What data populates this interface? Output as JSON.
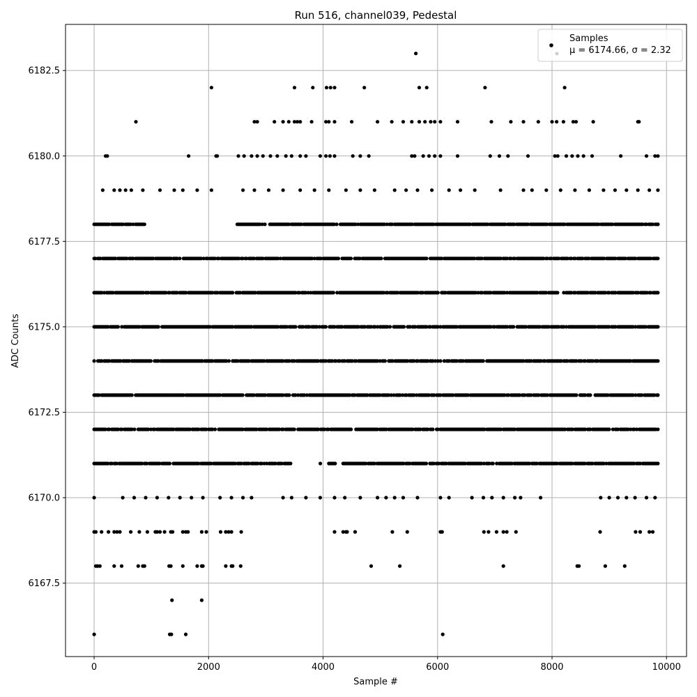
{
  "chart_data": {
    "type": "scatter",
    "title": "Run 516, channel039, Pedestal",
    "xlabel": "Sample #",
    "ylabel": "ADC Counts",
    "xlim": [
      -500,
      10350
    ],
    "ylim": [
      6165.35,
      6183.85
    ],
    "xticks": [
      0,
      2000,
      4000,
      6000,
      8000,
      10000
    ],
    "xtick_labels": [
      "0",
      "2000",
      "4000",
      "6000",
      "8000",
      "10000"
    ],
    "yticks": [
      6167.5,
      6170.0,
      6172.5,
      6175.0,
      6177.5,
      6180.0,
      6182.5
    ],
    "ytick_labels": [
      "6167.5",
      "6170.0",
      "6172.5",
      "6175.0",
      "6177.5",
      "6180.0",
      "6182.5"
    ],
    "grid": true,
    "legend_position": "top-right",
    "legend": {
      "series_label": "Samples",
      "stats_label": "μ = 6174.66, σ = 2.32"
    },
    "series": [
      {
        "name": "Samples",
        "color": "#000000",
        "x_max": 9850
      }
    ],
    "levels": [
      {
        "y": 6166,
        "x": [
          0,
          1320,
          1350,
          1600,
          6090
        ]
      },
      {
        "y": 6167,
        "x": [
          1360,
          1880
        ]
      },
      {
        "y": 6168,
        "x": [
          30,
          60,
          100,
          350,
          480,
          770,
          850,
          880,
          1310,
          1340,
          1550,
          1800,
          1880,
          1900,
          2300,
          2400,
          2420,
          2560,
          4840,
          5340,
          7150,
          8440,
          8470,
          8930,
          9270
        ]
      },
      {
        "y": 6169,
        "x": [
          0,
          30,
          130,
          250,
          350,
          400,
          450,
          640,
          790,
          930,
          1070,
          1100,
          1150,
          1230,
          1340,
          1370,
          1550,
          1600,
          1640,
          1880,
          1960,
          2210,
          2300,
          2350,
          2400,
          2570,
          4200,
          4350,
          4400,
          4420,
          4560,
          5210,
          5470,
          6050,
          6080,
          6810,
          6890,
          7030,
          7150,
          7210,
          7370,
          8840,
          9460,
          9540,
          9700,
          9760
        ]
      },
      {
        "y": 6170,
        "x": [
          0,
          500,
          700,
          900,
          1100,
          1300,
          1500,
          1700,
          1900,
          2200,
          2400,
          2600,
          2750,
          3300,
          3450,
          3700,
          3950,
          4200,
          4380,
          4650,
          4950,
          5100,
          5250,
          5400,
          5650,
          6050,
          6200,
          6600,
          6800,
          6950,
          7150,
          7350,
          7450,
          7800,
          8850,
          9000,
          9150,
          9300,
          9450,
          9650,
          9800
        ]
      },
      {
        "y": 6171,
        "x": [
          0,
          9850
        ],
        "dense": [
          [
            0,
            3450
          ],
          [
            3930,
            3960
          ],
          [
            4100,
            4220
          ],
          [
            4350,
            9850
          ]
        ]
      },
      {
        "y": 6172,
        "x": [
          0,
          9850
        ],
        "dense": [
          [
            0,
            9850
          ]
        ]
      },
      {
        "y": 6173,
        "x": [
          0,
          9850
        ],
        "dense": [
          [
            0,
            9850
          ]
        ]
      },
      {
        "y": 6174,
        "x": [
          0,
          9850
        ],
        "dense": [
          [
            0,
            9850
          ]
        ]
      },
      {
        "y": 6175,
        "x": [
          0,
          9850
        ],
        "dense": [
          [
            0,
            9850
          ]
        ]
      },
      {
        "y": 6176,
        "x": [
          0,
          9850
        ],
        "dense": [
          [
            0,
            9850
          ]
        ]
      },
      {
        "y": 6177,
        "x": [
          0,
          9850
        ],
        "dense": [
          [
            0,
            9850
          ]
        ]
      },
      {
        "y": 6178,
        "x": [
          0,
          9850
        ],
        "dense": [
          [
            0,
            900
          ],
          [
            2500,
            9850
          ]
        ]
      },
      {
        "y": 6179,
        "x": [
          150,
          350,
          450,
          550,
          650,
          850,
          1150,
          1400,
          1550,
          1800,
          2050,
          2600,
          2800,
          3050,
          3300,
          3600,
          3850,
          4100,
          4400,
          4650,
          4900,
          5250,
          5450,
          5650,
          5900,
          6200,
          6400,
          6650,
          7100,
          7500,
          7650,
          7900,
          8150,
          8400,
          8650,
          8900,
          9100,
          9300,
          9500,
          9700,
          9850
        ]
      },
      {
        "y": 6180,
        "x": [
          200,
          230,
          1650,
          2130,
          2150,
          2520,
          2620,
          2750,
          2850,
          2950,
          3080,
          3200,
          3350,
          3450,
          3600,
          3700,
          3950,
          4050,
          4120,
          4200,
          4520,
          4650,
          4800,
          5550,
          5600,
          5750,
          5850,
          5950,
          6050,
          6350,
          6920,
          7080,
          7230,
          7580,
          8050,
          8100,
          8250,
          8350,
          8450,
          8550,
          8700,
          9200,
          9650,
          9800,
          9850
        ]
      },
      {
        "y": 6181,
        "x": [
          730,
          2800,
          2850,
          3150,
          3300,
          3400,
          3500,
          3550,
          3600,
          3800,
          4050,
          4100,
          4200,
          4500,
          4950,
          5200,
          5400,
          5550,
          5680,
          5780,
          5880,
          5950,
          6050,
          6350,
          6940,
          7280,
          7500,
          7760,
          8000,
          8080,
          8200,
          8370,
          8420,
          8720,
          9500,
          9520
        ]
      },
      {
        "y": 6182,
        "x": [
          2050,
          3500,
          3820,
          4060,
          4130,
          4200,
          4720,
          5680,
          5810,
          6830,
          8220
        ]
      },
      {
        "y": 6183,
        "x": [
          5620
        ]
      }
    ]
  }
}
